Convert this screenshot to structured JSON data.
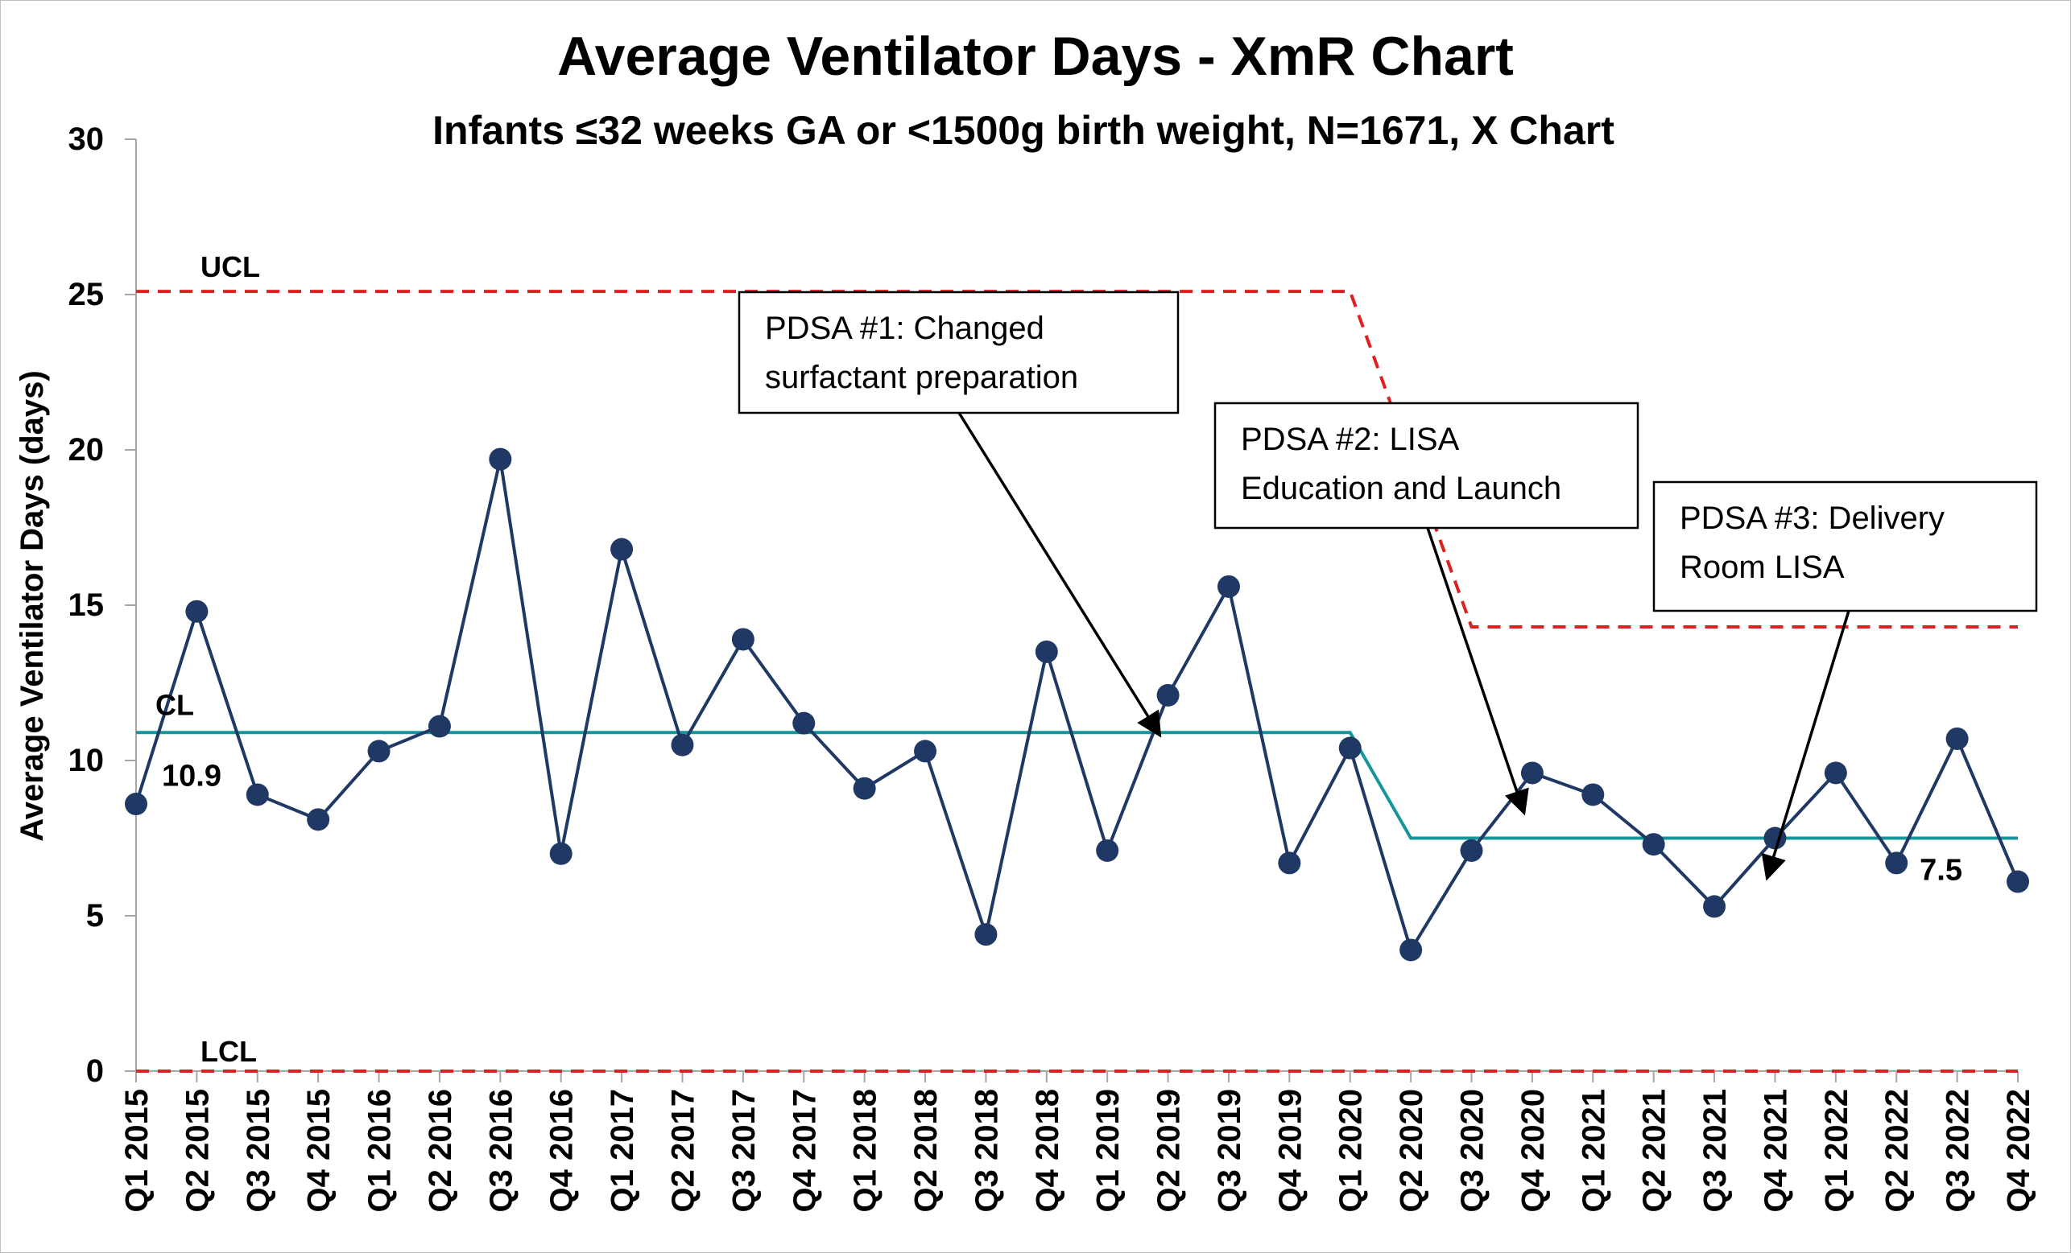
{
  "chart_data": {
    "type": "line",
    "title": "Average Ventilator Days - XmR Chart",
    "subtitle": "Infants ≤32 weeks GA or <1500g birth weight, N=1671, X Chart",
    "ylabel": "Average Ventilator Days (days)",
    "xlabel": "",
    "ylim": [
      0,
      30
    ],
    "yticks": [
      0,
      5,
      10,
      15,
      20,
      25,
      30
    ],
    "grid": false,
    "categories": [
      "Q1 2015",
      "Q2 2015",
      "Q3 2015",
      "Q4 2015",
      "Q1 2016",
      "Q2 2016",
      "Q3 2016",
      "Q4 2016",
      "Q1 2017",
      "Q2 2017",
      "Q3 2017",
      "Q4 2017",
      "Q1 2018",
      "Q2 2018",
      "Q3 2018",
      "Q4 2018",
      "Q1 2019",
      "Q2 2019",
      "Q3 2019",
      "Q4 2019",
      "Q1 2020",
      "Q2 2020",
      "Q3 2020",
      "Q4 2020",
      "Q1 2021",
      "Q2 2021",
      "Q3 2021",
      "Q4 2021",
      "Q1 2022",
      "Q2 2022",
      "Q3 2022",
      "Q4 2022"
    ],
    "series": [
      {
        "values": [
          8.6,
          14.8,
          8.9,
          8.1,
          10.3,
          11.1,
          19.7,
          7.0,
          16.8,
          10.5,
          13.9,
          11.2,
          9.1,
          10.3,
          4.4,
          13.5,
          7.1,
          12.1,
          15.6,
          6.7,
          10.4,
          3.9,
          7.1,
          9.6,
          8.9,
          7.3,
          5.3,
          7.5,
          9.6,
          6.7,
          10.7,
          6.1
        ],
        "color": "#1F3864"
      }
    ],
    "control_lines": {
      "cl": {
        "label": "CL",
        "color": "#14969A",
        "segments": [
          {
            "from": "Q1 2015",
            "to": "Q1 2020",
            "value": 10.9
          },
          {
            "from": "Q2 2020",
            "to": "Q4 2022",
            "value": 7.5
          }
        ],
        "value_labels": [
          "10.9",
          "7.5"
        ]
      },
      "ucl": {
        "label": "UCL",
        "color": "#E02020",
        "segments": [
          {
            "from": "Q1 2015",
            "to": "Q1 2020",
            "value": 25.1
          },
          {
            "from": "Q3 2020",
            "to": "Q4 2022",
            "value": 14.3
          }
        ]
      },
      "lcl": {
        "label": "LCL",
        "color": "#E02020",
        "segments": [
          {
            "from": "Q1 2015",
            "to": "Q4 2022",
            "value": 0
          }
        ]
      }
    },
    "annotations": [
      {
        "lines": [
          "PDSA #1: Changed",
          "surfactant preparation"
        ],
        "points_to": "Q2 2019"
      },
      {
        "lines": [
          "PDSA #2: LISA",
          "Education and Launch"
        ],
        "points_to": "Q4 2020"
      },
      {
        "lines": [
          "PDSA #3: Delivery",
          "Room LISA"
        ],
        "points_to": "Q4 2021"
      }
    ]
  }
}
